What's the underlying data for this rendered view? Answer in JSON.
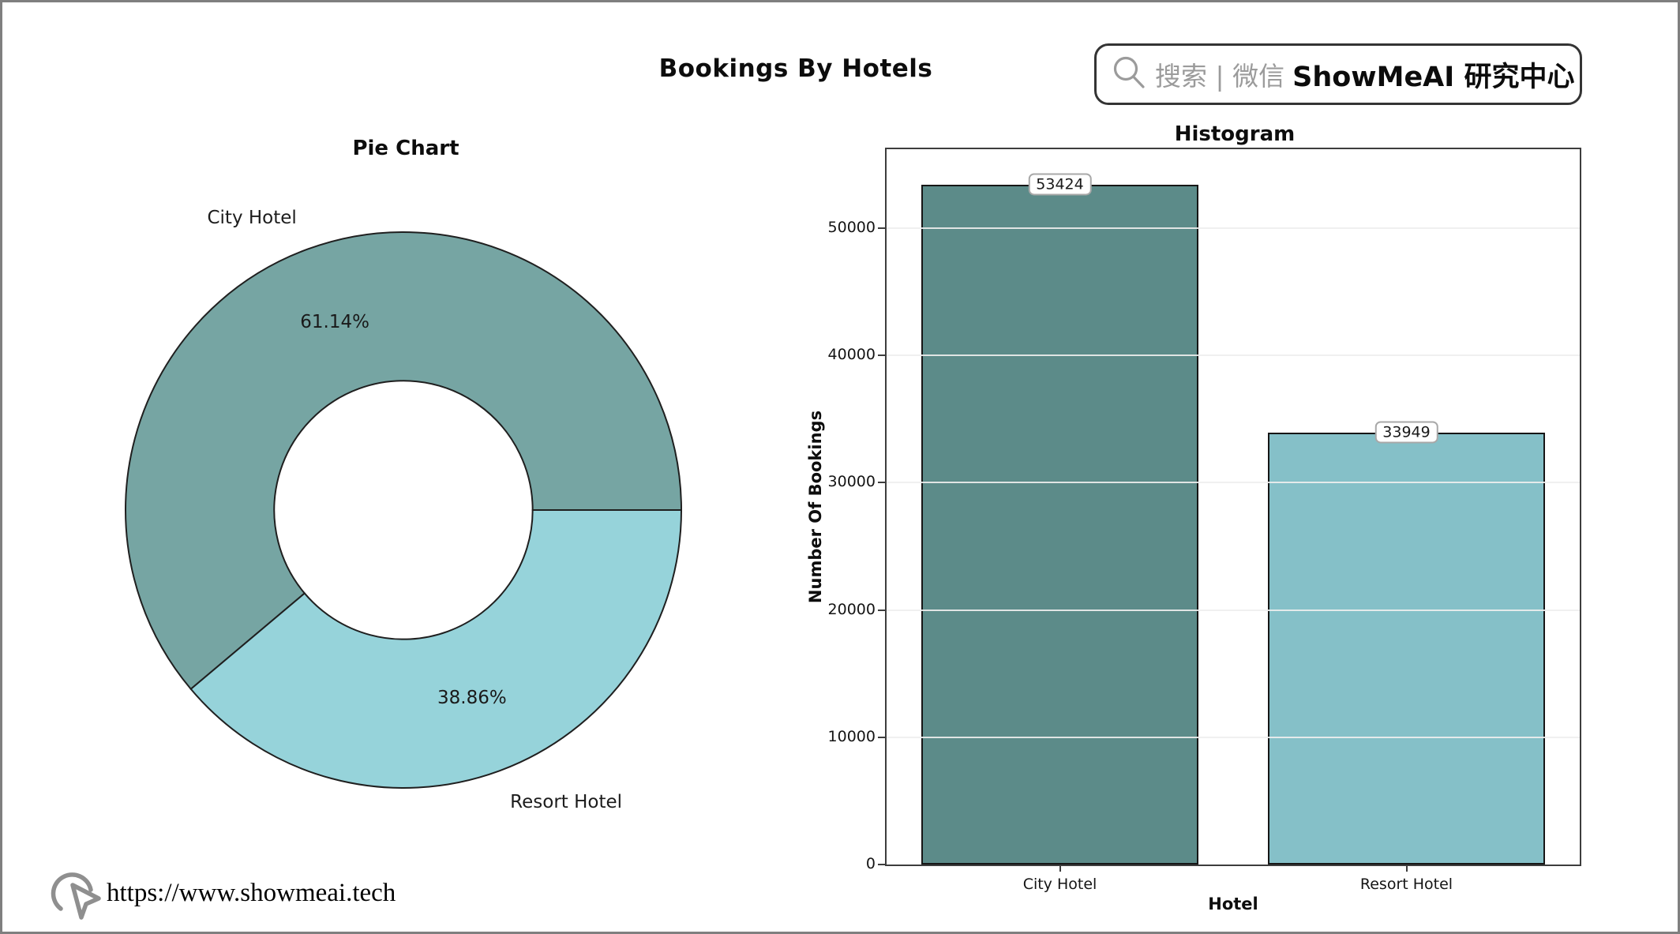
{
  "figure": {
    "title": "Bookings By Hotels",
    "badge": {
      "icon": "magnifier-search-icon",
      "search_text": "搜索 | 微信",
      "brand_text": "ShowMeAI 研究中心"
    },
    "footer": {
      "icon": "cursor-click-icon",
      "url": "https://www.showmeai.tech"
    }
  },
  "colors": {
    "pie_city_hotel": "#76A5A3",
    "pie_resort_hotel": "#96D3DA",
    "bar_city_hotel": "#5C8B89",
    "bar_resort_hotel": "#85C0C8",
    "wedge_edge": "#1f1f1f",
    "grid": "#eeeeee",
    "frame_border": "#7f7f7f"
  },
  "chart_data": [
    {
      "type": "pie",
      "title": "Pie Chart",
      "labels": [
        "City Hotel",
        "Resort Hotel"
      ],
      "values": [
        61.14,
        38.86
      ],
      "pct_labels": [
        "61.14%",
        "38.86%"
      ],
      "colors": [
        "#76A5A3",
        "#96D3DA"
      ],
      "donut_hole_ratio": 0.465,
      "start_angle_deg": 0,
      "direction": "counterclockwise",
      "legend": "none"
    },
    {
      "type": "bar",
      "title": "Histogram",
      "categories": [
        "City Hotel",
        "Resort Hotel"
      ],
      "values": [
        53424,
        33949
      ],
      "bar_labels": [
        "53424",
        "33949"
      ],
      "xlabel": "Hotel",
      "ylabel": "Number Of Bookings",
      "ylim": [
        0,
        56200
      ],
      "yticks": [
        0,
        10000,
        20000,
        30000,
        40000,
        50000
      ],
      "colors": [
        "#5C8B89",
        "#85C0C8"
      ],
      "grid": true,
      "legend": "none"
    }
  ]
}
